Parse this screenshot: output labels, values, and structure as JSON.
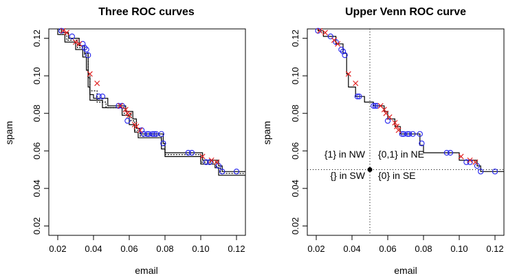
{
  "colors": {
    "axis": "#000000",
    "circle": "#2020ee",
    "cross": "#e02020",
    "curve": "#000000"
  },
  "chart_data": [
    {
      "type": "line",
      "title": "Three ROC curves",
      "xlabel": "email",
      "ylabel": "spam",
      "xlim": [
        0.015,
        0.125
      ],
      "ylim": [
        0.015,
        0.125
      ],
      "xticks": [
        0.02,
        0.04,
        0.06,
        0.08,
        0.1,
        0.12
      ],
      "yticks": [
        0.02,
        0.04,
        0.06,
        0.08,
        0.1,
        0.12
      ],
      "xtick_labels": [
        "0.02",
        "0.04",
        "0.06",
        "0.08",
        "0.10",
        "0.12"
      ],
      "ytick_labels": [
        "0.02",
        "0.04",
        "0.06",
        "0.08",
        "0.10",
        "0.12"
      ],
      "series": [
        {
          "style": "solid",
          "steps": [
            [
              0.02,
              0.125
            ],
            [
              0.02,
              0.122
            ],
            [
              0.024,
              0.122
            ],
            [
              0.024,
              0.118
            ],
            [
              0.03,
              0.118
            ],
            [
              0.03,
              0.114
            ],
            [
              0.034,
              0.114
            ],
            [
              0.034,
              0.11
            ],
            [
              0.036,
              0.11
            ],
            [
              0.036,
              0.103
            ],
            [
              0.037,
              0.103
            ],
            [
              0.037,
              0.094
            ],
            [
              0.038,
              0.094
            ],
            [
              0.038,
              0.087
            ],
            [
              0.045,
              0.087
            ],
            [
              0.045,
              0.083
            ],
            [
              0.056,
              0.083
            ],
            [
              0.056,
              0.079
            ],
            [
              0.06,
              0.079
            ],
            [
              0.06,
              0.074
            ],
            [
              0.063,
              0.074
            ],
            [
              0.063,
              0.07
            ],
            [
              0.065,
              0.07
            ],
            [
              0.065,
              0.067
            ],
            [
              0.078,
              0.067
            ],
            [
              0.078,
              0.061
            ],
            [
              0.08,
              0.061
            ],
            [
              0.08,
              0.057
            ],
            [
              0.1,
              0.057
            ],
            [
              0.1,
              0.053
            ],
            [
              0.108,
              0.053
            ],
            [
              0.108,
              0.051
            ],
            [
              0.11,
              0.051
            ],
            [
              0.11,
              0.047
            ],
            [
              0.125,
              0.047
            ]
          ]
        },
        {
          "style": "solid",
          "steps": [
            [
              0.022,
              0.125
            ],
            [
              0.022,
              0.123
            ],
            [
              0.026,
              0.123
            ],
            [
              0.026,
              0.12
            ],
            [
              0.032,
              0.12
            ],
            [
              0.032,
              0.116
            ],
            [
              0.035,
              0.116
            ],
            [
              0.035,
              0.112
            ],
            [
              0.037,
              0.112
            ],
            [
              0.037,
              0.099
            ],
            [
              0.038,
              0.099
            ],
            [
              0.038,
              0.09
            ],
            [
              0.04,
              0.09
            ],
            [
              0.04,
              0.088
            ],
            [
              0.048,
              0.088
            ],
            [
              0.048,
              0.084
            ],
            [
              0.058,
              0.084
            ],
            [
              0.058,
              0.081
            ],
            [
              0.062,
              0.081
            ],
            [
              0.062,
              0.077
            ],
            [
              0.064,
              0.077
            ],
            [
              0.064,
              0.072
            ],
            [
              0.066,
              0.072
            ],
            [
              0.066,
              0.069
            ],
            [
              0.079,
              0.069
            ],
            [
              0.079,
              0.064
            ],
            [
              0.08,
              0.064
            ],
            [
              0.08,
              0.059
            ],
            [
              0.101,
              0.059
            ],
            [
              0.101,
              0.055
            ],
            [
              0.11,
              0.055
            ],
            [
              0.11,
              0.052
            ],
            [
              0.112,
              0.052
            ],
            [
              0.112,
              0.049
            ],
            [
              0.125,
              0.049
            ]
          ]
        },
        {
          "style": "dotted",
          "steps": [
            [
              0.021,
              0.125
            ],
            [
              0.021,
              0.122
            ],
            [
              0.025,
              0.122
            ],
            [
              0.025,
              0.119
            ],
            [
              0.031,
              0.119
            ],
            [
              0.031,
              0.115
            ],
            [
              0.035,
              0.115
            ],
            [
              0.035,
              0.111
            ],
            [
              0.037,
              0.111
            ],
            [
              0.037,
              0.101
            ],
            [
              0.038,
              0.101
            ],
            [
              0.038,
              0.092
            ],
            [
              0.042,
              0.092
            ],
            [
              0.042,
              0.086
            ],
            [
              0.047,
              0.086
            ],
            [
              0.047,
              0.083
            ],
            [
              0.057,
              0.083
            ],
            [
              0.057,
              0.08
            ],
            [
              0.061,
              0.08
            ],
            [
              0.061,
              0.076
            ],
            [
              0.063,
              0.076
            ],
            [
              0.063,
              0.071
            ],
            [
              0.066,
              0.071
            ],
            [
              0.066,
              0.068
            ],
            [
              0.078,
              0.068
            ],
            [
              0.078,
              0.063
            ],
            [
              0.08,
              0.063
            ],
            [
              0.08,
              0.058
            ],
            [
              0.1,
              0.058
            ],
            [
              0.1,
              0.054
            ],
            [
              0.109,
              0.054
            ],
            [
              0.109,
              0.051
            ],
            [
              0.111,
              0.051
            ],
            [
              0.111,
              0.048
            ],
            [
              0.125,
              0.048
            ]
          ]
        }
      ],
      "circles": [
        [
          0.022,
          0.124
        ],
        [
          0.028,
          0.121
        ],
        [
          0.034,
          0.117
        ],
        [
          0.035,
          0.115
        ],
        [
          0.036,
          0.114
        ],
        [
          0.037,
          0.111
        ],
        [
          0.043,
          0.089
        ],
        [
          0.045,
          0.089
        ],
        [
          0.054,
          0.084
        ],
        [
          0.056,
          0.084
        ],
        [
          0.059,
          0.076
        ],
        [
          0.067,
          0.071
        ],
        [
          0.068,
          0.069
        ],
        [
          0.07,
          0.069
        ],
        [
          0.071,
          0.069
        ],
        [
          0.073,
          0.069
        ],
        [
          0.074,
          0.069
        ],
        [
          0.075,
          0.069
        ],
        [
          0.078,
          0.069
        ],
        [
          0.079,
          0.064
        ],
        [
          0.093,
          0.059
        ],
        [
          0.095,
          0.059
        ],
        [
          0.103,
          0.054
        ],
        [
          0.105,
          0.054
        ],
        [
          0.11,
          0.052
        ],
        [
          0.112,
          0.049
        ],
        [
          0.12,
          0.049
        ]
      ],
      "crosses": [
        [
          0.023,
          0.124
        ],
        [
          0.025,
          0.123
        ],
        [
          0.03,
          0.118
        ],
        [
          0.032,
          0.117
        ],
        [
          0.038,
          0.101
        ],
        [
          0.042,
          0.096
        ],
        [
          0.055,
          0.084
        ],
        [
          0.058,
          0.082
        ],
        [
          0.059,
          0.08
        ],
        [
          0.06,
          0.079
        ],
        [
          0.063,
          0.074
        ],
        [
          0.064,
          0.073
        ],
        [
          0.066,
          0.071
        ],
        [
          0.101,
          0.057
        ],
        [
          0.106,
          0.055
        ],
        [
          0.109,
          0.054
        ]
      ]
    },
    {
      "type": "line",
      "title": "Upper Venn ROC curve",
      "xlabel": "email",
      "ylabel": "spam",
      "xlim": [
        0.015,
        0.125
      ],
      "ylim": [
        0.015,
        0.125
      ],
      "xticks": [
        0.02,
        0.04,
        0.06,
        0.08,
        0.1,
        0.12
      ],
      "yticks": [
        0.02,
        0.04,
        0.06,
        0.08,
        0.1,
        0.12
      ],
      "xtick_labels": [
        "0.02",
        "0.04",
        "0.06",
        "0.08",
        "0.10",
        "0.12"
      ],
      "ytick_labels": [
        "0.02",
        "0.04",
        "0.06",
        "0.08",
        "0.10",
        "0.12"
      ],
      "series": [
        {
          "style": "solid",
          "steps": [
            [
              0.021,
              0.125
            ],
            [
              0.021,
              0.124
            ],
            [
              0.024,
              0.124
            ],
            [
              0.024,
              0.121
            ],
            [
              0.031,
              0.121
            ],
            [
              0.031,
              0.117
            ],
            [
              0.035,
              0.117
            ],
            [
              0.035,
              0.112
            ],
            [
              0.037,
              0.112
            ],
            [
              0.037,
              0.101
            ],
            [
              0.038,
              0.101
            ],
            [
              0.038,
              0.094
            ],
            [
              0.042,
              0.094
            ],
            [
              0.042,
              0.089
            ],
            [
              0.047,
              0.089
            ],
            [
              0.047,
              0.086
            ],
            [
              0.052,
              0.086
            ],
            [
              0.052,
              0.084
            ],
            [
              0.058,
              0.084
            ],
            [
              0.058,
              0.081
            ],
            [
              0.06,
              0.081
            ],
            [
              0.06,
              0.077
            ],
            [
              0.064,
              0.077
            ],
            [
              0.064,
              0.073
            ],
            [
              0.067,
              0.073
            ],
            [
              0.067,
              0.069
            ],
            [
              0.078,
              0.069
            ],
            [
              0.078,
              0.063
            ],
            [
              0.08,
              0.063
            ],
            [
              0.08,
              0.059
            ],
            [
              0.1,
              0.059
            ],
            [
              0.1,
              0.055
            ],
            [
              0.11,
              0.055
            ],
            [
              0.11,
              0.052
            ],
            [
              0.112,
              0.052
            ],
            [
              0.112,
              0.049
            ],
            [
              0.125,
              0.049
            ]
          ]
        }
      ],
      "circles": [
        [
          0.021,
          0.124
        ],
        [
          0.028,
          0.121
        ],
        [
          0.031,
          0.118
        ],
        [
          0.034,
          0.114
        ],
        [
          0.035,
          0.113
        ],
        [
          0.036,
          0.111
        ],
        [
          0.043,
          0.089
        ],
        [
          0.044,
          0.089
        ],
        [
          0.052,
          0.084
        ],
        [
          0.053,
          0.084
        ],
        [
          0.054,
          0.084
        ],
        [
          0.06,
          0.076
        ],
        [
          0.068,
          0.069
        ],
        [
          0.069,
          0.069
        ],
        [
          0.071,
          0.069
        ],
        [
          0.072,
          0.069
        ],
        [
          0.074,
          0.069
        ],
        [
          0.078,
          0.069
        ],
        [
          0.079,
          0.064
        ],
        [
          0.093,
          0.059
        ],
        [
          0.095,
          0.059
        ],
        [
          0.104,
          0.054
        ],
        [
          0.106,
          0.054
        ],
        [
          0.11,
          0.052
        ],
        [
          0.112,
          0.049
        ],
        [
          0.12,
          0.049
        ]
      ],
      "crosses": [
        [
          0.022,
          0.124
        ],
        [
          0.025,
          0.123
        ],
        [
          0.03,
          0.119
        ],
        [
          0.032,
          0.117
        ],
        [
          0.038,
          0.101
        ],
        [
          0.042,
          0.096
        ],
        [
          0.056,
          0.084
        ],
        [
          0.058,
          0.082
        ],
        [
          0.059,
          0.08
        ],
        [
          0.061,
          0.078
        ],
        [
          0.064,
          0.075
        ],
        [
          0.065,
          0.073
        ],
        [
          0.066,
          0.071
        ],
        [
          0.101,
          0.057
        ],
        [
          0.106,
          0.055
        ],
        [
          0.109,
          0.054
        ]
      ],
      "reference_point": [
        0.05,
        0.05
      ],
      "quadrant_labels": {
        "nw": "{1} in NW",
        "ne": "{0,1} in NE",
        "sw": "{} in SW",
        "se": "{0} in SE"
      }
    }
  ]
}
